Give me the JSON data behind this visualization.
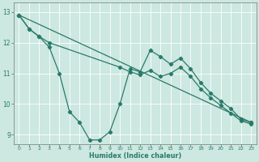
{
  "xlabel": "Humidex (Indice chaleur)",
  "bg_color": "#cce8e0",
  "line_color": "#2a7a6a",
  "grid_color": "#ffffff",
  "xlim_min": -0.5,
  "xlim_max": 23.5,
  "ylim_min": 8.7,
  "ylim_max": 13.3,
  "xticks": [
    0,
    1,
    2,
    3,
    4,
    5,
    6,
    7,
    8,
    9,
    10,
    11,
    12,
    13,
    14,
    15,
    16,
    17,
    18,
    19,
    20,
    21,
    22,
    23
  ],
  "yticks": [
    9,
    10,
    11,
    12,
    13
  ],
  "line1_x": [
    0,
    1,
    2,
    3,
    4,
    5,
    6,
    7,
    8,
    9,
    10,
    11,
    12,
    13,
    14,
    15,
    16,
    17,
    18,
    19,
    20,
    21,
    22,
    23
  ],
  "line1_y": [
    12.9,
    12.45,
    12.2,
    11.85,
    11.0,
    9.75,
    9.4,
    8.83,
    8.83,
    9.1,
    10.0,
    11.15,
    11.05,
    11.75,
    11.55,
    11.3,
    11.5,
    11.15,
    10.7,
    10.35,
    10.1,
    9.85,
    9.5,
    9.4
  ],
  "line2_x": [
    0,
    1,
    2,
    3,
    10,
    11,
    12,
    13,
    14,
    15,
    16,
    17,
    18,
    19,
    20,
    21,
    22,
    23
  ],
  "line2_y": [
    12.9,
    12.45,
    12.2,
    12.0,
    11.2,
    11.05,
    10.95,
    11.1,
    10.9,
    11.0,
    11.2,
    10.9,
    10.5,
    10.2,
    9.95,
    9.7,
    9.45,
    9.35
  ],
  "line3_x": [
    0,
    23
  ],
  "line3_y": [
    12.9,
    9.4
  ]
}
